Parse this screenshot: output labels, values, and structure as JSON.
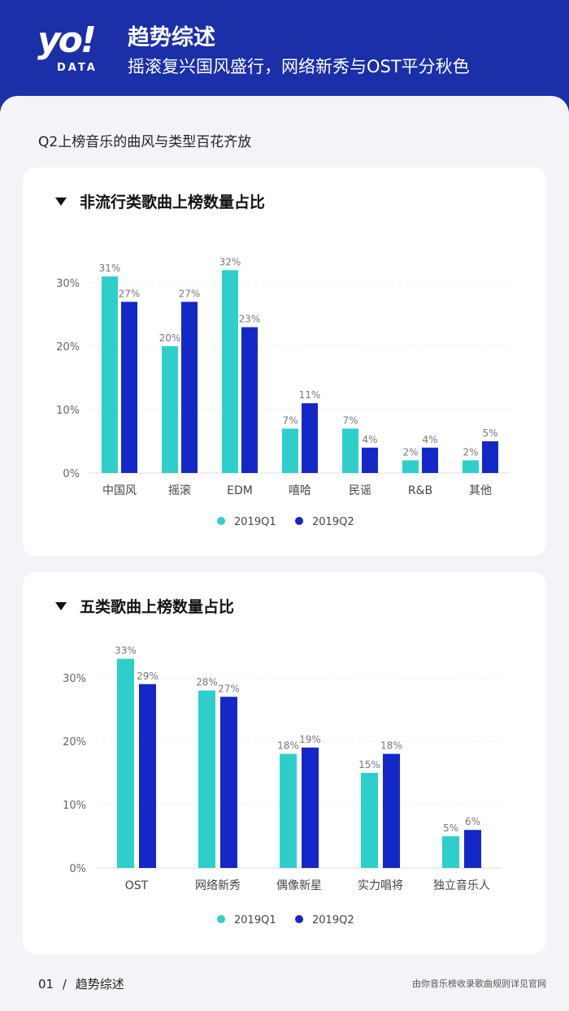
{
  "logo": {
    "main": "yo!",
    "sub": "DATA"
  },
  "header": {
    "title": "趋势综述",
    "subtitle": "摇滚复兴国风盛行，网络新秀与OST平分秋色"
  },
  "section_label": "Q2上榜音乐的曲风与类型百花齐放",
  "footer": {
    "page_num": "01",
    "separator": "/",
    "page_title": "趋势综述",
    "note": "由你音乐榜收录歌曲规则详见官网"
  },
  "colors": {
    "q1": "#2ecfcb",
    "q2": "#1428c8",
    "header_bg": "#1a2fa8"
  },
  "chart_data": [
    {
      "type": "bar",
      "title": "非流行类歌曲上榜数量占比",
      "categories": [
        "中国风",
        "摇滚",
        "EDM",
        "嘻哈",
        "民谣",
        "R&B",
        "其他"
      ],
      "series": [
        {
          "name": "2019Q1",
          "values": [
            31,
            20,
            32,
            7,
            7,
            2,
            2
          ]
        },
        {
          "name": "2019Q2",
          "values": [
            27,
            27,
            23,
            11,
            4,
            4,
            5
          ]
        }
      ],
      "yticks": [
        "0%",
        "10%",
        "20%",
        "30%"
      ],
      "ylim": [
        0,
        30
      ],
      "legend": "bottom-center",
      "grid": true
    },
    {
      "type": "bar",
      "title": "五类歌曲上榜数量占比",
      "categories": [
        "OST",
        "网络新秀",
        "偶像新星",
        "实力唱将",
        "独立音乐人"
      ],
      "series": [
        {
          "name": "2019Q1",
          "values": [
            33,
            28,
            18,
            15,
            5
          ]
        },
        {
          "name": "2019Q2",
          "values": [
            29,
            27,
            19,
            18,
            6
          ]
        }
      ],
      "yticks": [
        "0%",
        "10%",
        "20%",
        "30%"
      ],
      "ylim": [
        0,
        30
      ],
      "legend": "bottom-center",
      "grid": true
    }
  ]
}
